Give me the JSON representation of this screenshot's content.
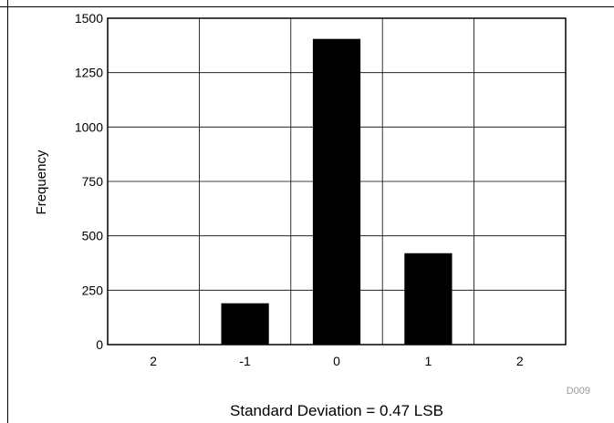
{
  "chart_data": {
    "type": "bar",
    "categories": [
      "2",
      "-1",
      "0",
      "1",
      "2"
    ],
    "values": [
      0,
      190,
      1405,
      420,
      0
    ],
    "ylabel": "Frequency",
    "xlabel": "Standard Deviation = 0.47 LSB",
    "ylim": [
      0,
      1500
    ],
    "yticks": [
      0,
      250,
      500,
      750,
      1000,
      1250,
      1500
    ],
    "grid": true,
    "legend": "none",
    "bar_color": "#000000",
    "annotation": "D009"
  }
}
